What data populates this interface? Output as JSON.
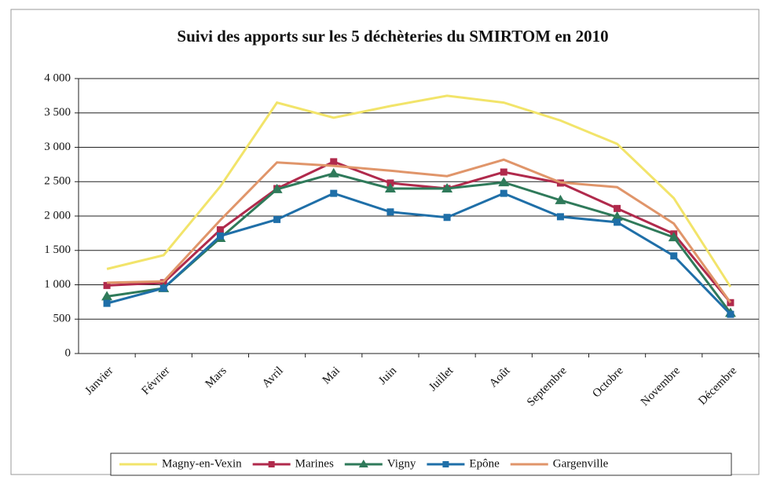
{
  "chart_data": {
    "type": "line",
    "title": "Suivi des apports sur les 5 déchèteries du SMIRTOM en 2010",
    "categories": [
      "Janvier",
      "Février",
      "Mars",
      "Avril",
      "Mai",
      "Juin",
      "Juillet",
      "Août",
      "Septembre",
      "Octobre",
      "Novembre",
      "Décembre"
    ],
    "series": [
      {
        "name": "Magny-en-Vexin",
        "color": "#f2e46a",
        "marker": "none",
        "values": [
          1230,
          1430,
          2430,
          3650,
          3430,
          3600,
          3750,
          3650,
          3390,
          3050,
          2260,
          970
        ]
      },
      {
        "name": "Marines",
        "color": "#b02a4c",
        "marker": "square",
        "values": [
          990,
          1030,
          1800,
          2400,
          2790,
          2480,
          2400,
          2640,
          2480,
          2110,
          1740,
          740
        ]
      },
      {
        "name": "Vigny",
        "color": "#2f7a5a",
        "marker": "triangle",
        "values": [
          830,
          950,
          1680,
          2390,
          2620,
          2400,
          2400,
          2490,
          2230,
          1990,
          1690,
          590
        ]
      },
      {
        "name": "Epône",
        "color": "#1f6fa8",
        "marker": "square",
        "values": [
          730,
          950,
          1710,
          1950,
          2330,
          2060,
          1980,
          2330,
          1990,
          1910,
          1420,
          570
        ]
      },
      {
        "name": "Gargenville",
        "color": "#e0956a",
        "marker": "none",
        "values": [
          1030,
          1050,
          1940,
          2780,
          2730,
          2660,
          2580,
          2820,
          2490,
          2420,
          1890,
          740
        ]
      }
    ],
    "ylim": [
      0,
      4000
    ],
    "yticks": [
      0,
      500,
      {
        "value": 1000,
        "label": "1 000"
      },
      {
        "value": 1500,
        "label": "1 500"
      },
      {
        "value": 2000,
        "label": "2 000"
      },
      {
        "value": 2500,
        "label": "2 500"
      },
      {
        "value": 3000,
        "label": "3 000"
      },
      {
        "value": 3500,
        "label": "3 500"
      },
      {
        "value": 4000,
        "label": "4 000"
      }
    ],
    "grid": true,
    "legend": "bottom"
  }
}
